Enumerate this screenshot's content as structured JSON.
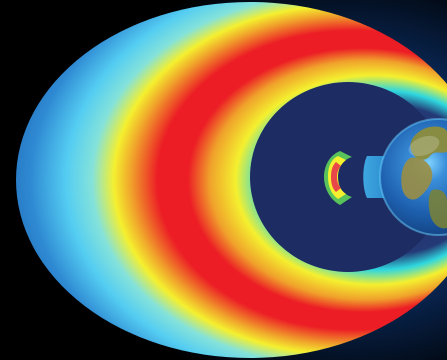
{
  "diagram": {
    "subject": "radiation-belts-around-earth",
    "colors": {
      "background": "#000000",
      "space_glow": "#0a3f82",
      "outer_belt_edge": "#1b62ad",
      "outer_belt_light_blue": "#54cdf2",
      "outer_belt_cyan": "#2fd7df",
      "outer_belt_yellow": "#f4f02f",
      "outer_belt_orange": "#f0a12b",
      "outer_belt_red": "#ec1d25",
      "inner_cavity": "#1d2c62",
      "slot_region": "#2a91d0",
      "inner_belt_green": "#58c35b",
      "inner_belt_red": "#e84848",
      "earth_ocean": "#1e61b0",
      "earth_land": "#8d8c3b",
      "earth_highlight": "#6ad0ff"
    }
  }
}
